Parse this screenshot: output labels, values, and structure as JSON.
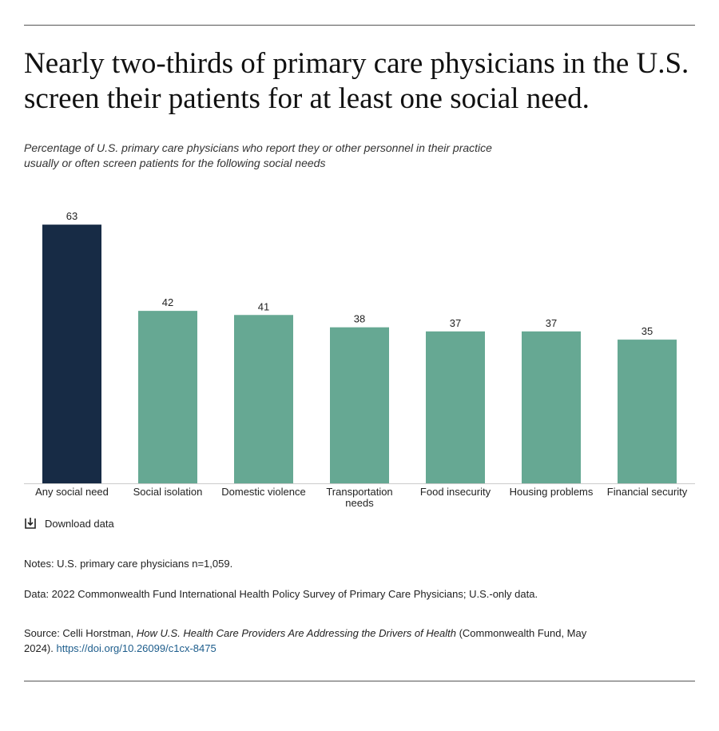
{
  "chart_data": {
    "type": "bar",
    "title": "Nearly two-thirds of primary care physicians in the U.S. screen their patients for at least one social need.",
    "subtitle": "Percentage of U.S. primary care physicians who report they or other personnel in their practice usually or often screen patients for the following social needs",
    "categories": [
      "Any social need",
      "Social isolation",
      "Domestic violence",
      "Transportation needs",
      "Food insecurity",
      "Housing problems",
      "Financial security"
    ],
    "values": [
      63,
      42,
      41,
      38,
      37,
      37,
      35
    ],
    "colors": [
      "#172b45",
      "#66a893",
      "#66a893",
      "#66a893",
      "#66a893",
      "#66a893",
      "#66a893"
    ]
  },
  "download": "Download data",
  "notes": "Notes: U.S. primary care physicians n=1,059.",
  "data_note": "Data: 2022 Commonwealth Fund International Health Policy Survey of Primary Care Physicians; U.S.-only data.",
  "source": {
    "prefix": "Source: Celli Horstman,",
    "title": "How U.S. Health Care Providers Are Addressing the Drivers of Health",
    "suffix": "(Commonwealth Fund, May 2024).",
    "link": "https://doi.org/10.26099/c1cx-8475"
  }
}
